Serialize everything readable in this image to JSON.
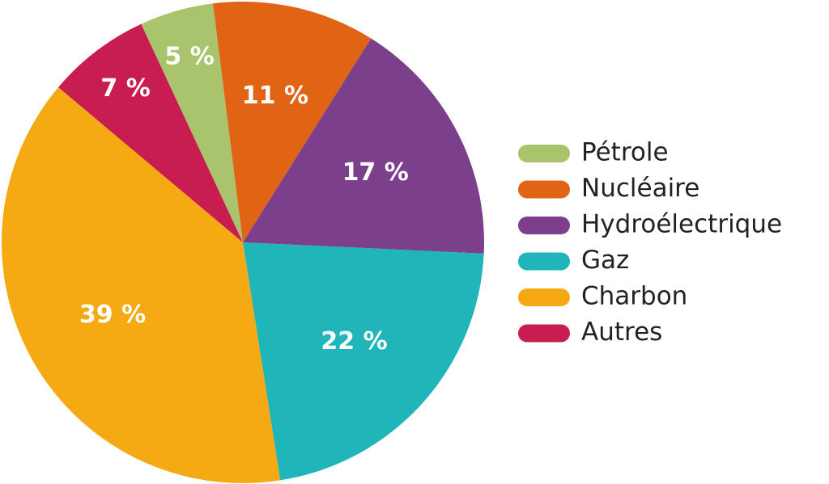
{
  "chart_data": {
    "type": "pie",
    "categories": [
      "Pétrole",
      "Nucléaire",
      "Hydroélectrique",
      "Gaz",
      "Charbon",
      "Autres"
    ],
    "values": [
      5,
      11,
      17,
      22,
      39,
      7
    ],
    "value_labels": [
      "5 %",
      "11 %",
      "17 %",
      "22 %",
      "39 %",
      "7 %"
    ],
    "colors": [
      "#a9c46c",
      "#e06414",
      "#7b3f8c",
      "#20b5b8",
      "#f5a912",
      "#c81d50"
    ],
    "legend": "right"
  }
}
